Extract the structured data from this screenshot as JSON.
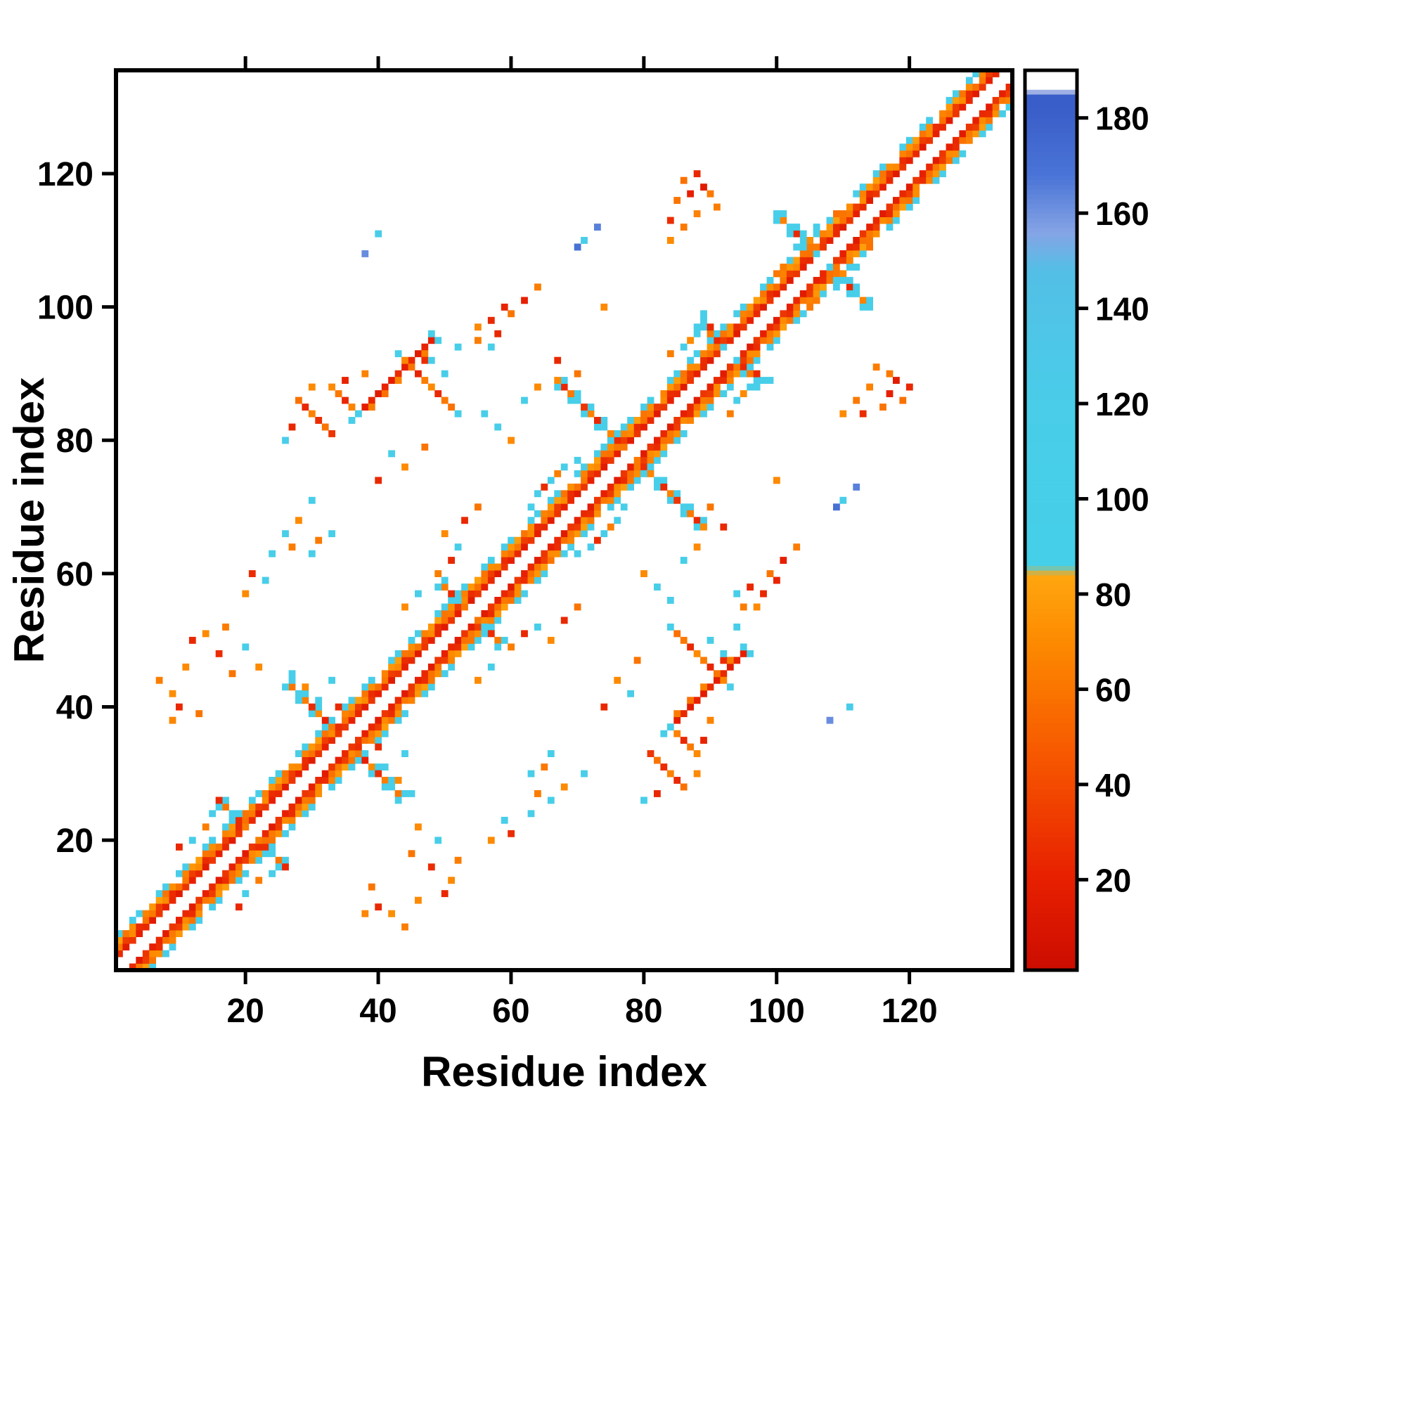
{
  "chart_data": {
    "type": "heatmap",
    "title": "",
    "xlabel": "Residue index",
    "ylabel": "Residue index",
    "x_ticks": [
      20,
      40,
      60,
      80,
      100,
      120
    ],
    "y_ticks": [
      20,
      40,
      60,
      80,
      100,
      120
    ],
    "colorbar_ticks": [
      20,
      40,
      60,
      80,
      100,
      120,
      140,
      160,
      180
    ],
    "x_range": [
      1,
      135
    ],
    "y_range": [
      1,
      135
    ],
    "value_range": [
      1,
      190
    ],
    "grid": false,
    "legend": "colorbar-right",
    "symmetric": true,
    "colormap_stops": [
      [
        1,
        "#cb0d00"
      ],
      [
        20,
        "#e71f00"
      ],
      [
        45,
        "#f65500"
      ],
      [
        70,
        "#fd8a00"
      ],
      [
        84,
        "#ffa60e"
      ],
      [
        86,
        "#45cfe9"
      ],
      [
        120,
        "#49cde9"
      ],
      [
        148,
        "#53bfe6"
      ],
      [
        156,
        "#85a4e6"
      ],
      [
        168,
        "#4a74d6"
      ],
      [
        182,
        "#3a5ec9"
      ],
      [
        185,
        "#3a5ec9"
      ],
      [
        186,
        "#ffffff"
      ],
      [
        190,
        "#ffffff"
      ]
    ],
    "diagonal_bands": [
      {
        "offset": 2,
        "values": [
          24,
          16,
          30,
          20
        ]
      },
      {
        "offset": 3,
        "values": [
          62,
          34,
          70,
          26,
          58
        ]
      },
      {
        "offset": 4,
        "values": [
          80,
          60,
          72,
          0,
          66,
          76
        ]
      },
      {
        "offset": 5,
        "values": [
          108,
          0,
          112,
          108,
          0,
          0,
          110
        ]
      }
    ],
    "hairpins": [
      {
        "center": 35,
        "half": 8,
        "values": [
          30,
          62,
          20,
          70,
          26,
          64,
          108,
          60
        ]
      },
      {
        "center": 78,
        "half": 11,
        "values": [
          62,
          26,
          68,
          110,
          24,
          66,
          30,
          108,
          62,
          24,
          70
        ]
      },
      {
        "center": 107,
        "half": 7,
        "values": [
          108,
          62,
          112,
          24,
          108,
          66,
          110
        ]
      },
      {
        "center": 21,
        "half": 5,
        "values": [
          64,
          26,
          108,
          60,
          24
        ]
      },
      {
        "center": 54,
        "half": 4,
        "values": [
          60,
          108,
          26,
          64
        ]
      },
      {
        "center": 93,
        "half": 4,
        "values": [
          108,
          24,
          62,
          110
        ]
      }
    ],
    "contacts": [
      [
        38,
        85,
        18
      ],
      [
        39,
        86,
        24
      ],
      [
        40,
        87,
        16
      ],
      [
        41,
        88,
        22
      ],
      [
        42,
        89,
        18
      ],
      [
        43,
        90,
        26
      ],
      [
        44,
        91,
        18
      ],
      [
        45,
        92,
        24
      ],
      [
        46,
        93,
        16
      ],
      [
        47,
        94,
        22
      ],
      [
        48,
        95,
        20
      ],
      [
        39,
        85,
        64
      ],
      [
        41,
        87,
        58
      ],
      [
        43,
        89,
        66
      ],
      [
        45,
        91,
        60
      ],
      [
        47,
        93,
        64
      ],
      [
        37,
        84,
        108
      ],
      [
        36,
        83,
        110
      ],
      [
        48,
        96,
        108
      ],
      [
        49,
        95,
        105
      ],
      [
        28,
        86,
        58
      ],
      [
        29,
        85,
        24
      ],
      [
        30,
        84,
        66
      ],
      [
        31,
        83,
        26
      ],
      [
        32,
        82,
        60
      ],
      [
        33,
        81,
        30
      ],
      [
        33,
        88,
        70
      ],
      [
        34,
        87,
        62
      ],
      [
        35,
        86,
        24
      ],
      [
        36,
        85,
        66
      ],
      [
        26,
        80,
        108
      ],
      [
        27,
        82,
        24
      ],
      [
        38,
        90,
        66
      ],
      [
        35,
        89,
        22
      ],
      [
        30,
        88,
        70
      ],
      [
        44,
        92,
        68
      ],
      [
        46,
        90,
        22
      ],
      [
        47,
        89,
        64
      ],
      [
        48,
        88,
        70
      ],
      [
        49,
        87,
        24
      ],
      [
        50,
        86,
        62
      ],
      [
        51,
        85,
        58
      ],
      [
        43,
        93,
        108
      ],
      [
        52,
        84,
        106
      ],
      [
        50,
        90,
        70
      ],
      [
        47,
        92,
        26
      ],
      [
        56,
        84,
        108
      ],
      [
        84,
        113,
        26
      ],
      [
        86,
        112,
        62
      ],
      [
        85,
        116,
        60
      ],
      [
        87,
        117,
        20
      ],
      [
        88,
        114,
        66
      ],
      [
        90,
        117,
        62
      ],
      [
        86,
        119,
        58
      ],
      [
        88,
        120,
        24
      ],
      [
        91,
        115,
        64
      ],
      [
        84,
        110,
        70
      ],
      [
        89,
        118,
        16
      ],
      [
        70,
        109,
        170
      ],
      [
        73,
        112,
        165
      ],
      [
        71,
        110,
        108
      ],
      [
        38,
        108,
        162
      ],
      [
        40,
        111,
        112
      ],
      [
        9,
        38,
        68
      ],
      [
        9,
        42,
        72
      ],
      [
        13,
        39,
        60
      ],
      [
        11,
        46,
        70
      ],
      [
        7,
        44,
        64
      ],
      [
        10,
        40,
        24
      ],
      [
        20,
        57,
        70
      ],
      [
        21,
        60,
        26
      ],
      [
        24,
        63,
        106
      ],
      [
        26,
        66,
        108
      ],
      [
        28,
        68,
        70
      ],
      [
        30,
        71,
        110
      ],
      [
        27,
        64,
        64
      ],
      [
        23,
        59,
        108
      ],
      [
        16,
        48,
        26
      ],
      [
        18,
        45,
        60
      ],
      [
        20,
        49,
        106
      ],
      [
        22,
        46,
        70
      ],
      [
        14,
        51,
        70
      ],
      [
        12,
        50,
        24
      ],
      [
        17,
        52,
        64
      ],
      [
        46,
        57,
        108
      ],
      [
        49,
        60,
        64
      ],
      [
        51,
        62,
        24
      ],
      [
        44,
        55,
        70
      ],
      [
        30,
        63,
        110
      ],
      [
        33,
        66,
        106
      ],
      [
        31,
        65,
        62
      ],
      [
        58,
        96,
        24
      ],
      [
        60,
        99,
        60
      ],
      [
        62,
        101,
        20
      ],
      [
        55,
        97,
        70
      ],
      [
        64,
        103,
        64
      ],
      [
        57,
        94,
        108
      ],
      [
        48,
        92,
        108
      ],
      [
        50,
        90,
        112
      ],
      [
        52,
        94,
        106
      ],
      [
        101,
        106,
        64
      ],
      [
        103,
        109,
        108
      ],
      [
        104,
        111,
        112
      ],
      [
        106,
        112,
        106
      ],
      [
        102,
        107,
        110
      ],
      [
        108,
        113,
        108
      ],
      [
        105,
        110,
        70
      ],
      [
        100,
        105,
        62
      ],
      [
        109,
        114,
        58
      ],
      [
        64,
        72,
        108
      ],
      [
        66,
        74,
        112
      ],
      [
        68,
        76,
        106
      ],
      [
        70,
        77,
        110
      ],
      [
        67,
        75,
        64
      ],
      [
        63,
        70,
        108
      ],
      [
        65,
        73,
        26
      ],
      [
        86,
        94,
        110
      ],
      [
        88,
        96,
        108
      ],
      [
        84,
        93,
        64
      ],
      [
        90,
        97,
        24
      ],
      [
        89,
        99,
        106
      ],
      [
        87,
        95,
        70
      ],
      [
        50,
        66,
        70
      ],
      [
        53,
        68,
        24
      ],
      [
        55,
        70,
        60
      ],
      [
        52,
        64,
        106
      ],
      [
        31,
        41,
        108
      ],
      [
        33,
        44,
        106
      ],
      [
        29,
        43,
        70
      ],
      [
        34,
        40,
        24
      ],
      [
        27,
        45,
        108
      ],
      [
        44,
        76,
        70
      ],
      [
        40,
        74,
        24
      ],
      [
        47,
        79,
        60
      ],
      [
        42,
        78,
        108
      ],
      [
        64,
        88,
        70
      ],
      [
        67,
        92,
        24
      ],
      [
        70,
        90,
        60
      ],
      [
        62,
        86,
        106
      ],
      [
        57,
        98,
        24
      ],
      [
        59,
        100,
        22
      ],
      [
        55,
        95,
        64
      ],
      [
        74,
        100,
        70
      ],
      [
        12,
        20,
        106
      ],
      [
        14,
        22,
        64
      ],
      [
        10,
        19,
        24
      ],
      [
        15,
        24,
        108
      ],
      [
        60,
        80,
        70
      ],
      [
        58,
        82,
        108
      ]
    ]
  }
}
